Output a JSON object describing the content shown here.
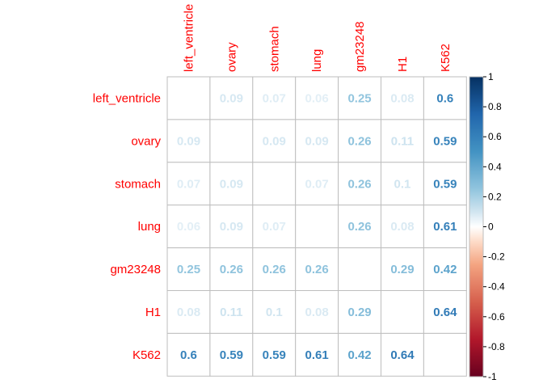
{
  "chart_data": {
    "type": "heatmap",
    "variables": [
      "left_ventricle",
      "ovary",
      "stomach",
      "lung",
      "gm23248",
      "H1",
      "K562"
    ],
    "matrix": [
      [
        null,
        0.09,
        0.07,
        0.06,
        0.25,
        0.08,
        0.6
      ],
      [
        0.09,
        null,
        0.09,
        0.09,
        0.26,
        0.11,
        0.59
      ],
      [
        0.07,
        0.09,
        null,
        0.07,
        0.26,
        0.1,
        0.59
      ],
      [
        0.06,
        0.09,
        0.07,
        null,
        0.26,
        0.08,
        0.61
      ],
      [
        0.25,
        0.26,
        0.26,
        0.26,
        null,
        0.29,
        0.42
      ],
      [
        0.08,
        0.11,
        0.1,
        0.08,
        0.29,
        null,
        0.64
      ],
      [
        0.6,
        0.59,
        0.59,
        0.61,
        0.42,
        0.64,
        null
      ]
    ],
    "labels": [
      [
        "",
        "0.09",
        "0.07",
        "0.06",
        "0.25",
        "0.08",
        "0.6"
      ],
      [
        "0.09",
        "",
        "0.09",
        "0.09",
        "0.26",
        "0.11",
        "0.59"
      ],
      [
        "0.07",
        "0.09",
        "",
        "0.07",
        "0.26",
        "0.1",
        "0.59"
      ],
      [
        "0.06",
        "0.09",
        "0.07",
        "",
        "0.26",
        "0.08",
        "0.61"
      ],
      [
        "0.25",
        "0.26",
        "0.26",
        "0.26",
        "",
        "0.29",
        "0.42"
      ],
      [
        "0.08",
        "0.11",
        "0.1",
        "0.08",
        "0.29",
        "",
        "0.64"
      ],
      [
        "0.6",
        "0.59",
        "0.59",
        "0.61",
        "0.42",
        "0.64",
        ""
      ]
    ],
    "color_range": [
      -1,
      1
    ],
    "colorbar_ticks": [
      "1",
      "0.8",
      "0.6",
      "0.4",
      "0.2",
      "0",
      "-0.2",
      "-0.4",
      "-0.6",
      "-0.8",
      "-1"
    ],
    "colorbar_tick_values": [
      1,
      0.8,
      0.6,
      0.4,
      0.2,
      0,
      -0.2,
      -0.4,
      -0.6,
      -0.8,
      -1
    ],
    "colors": {
      "negative_end": "#67001f",
      "mid": "#ffffff",
      "positive_end": "#053061",
      "label_color": "#ff0000",
      "grid_color": "#bebebe"
    }
  }
}
